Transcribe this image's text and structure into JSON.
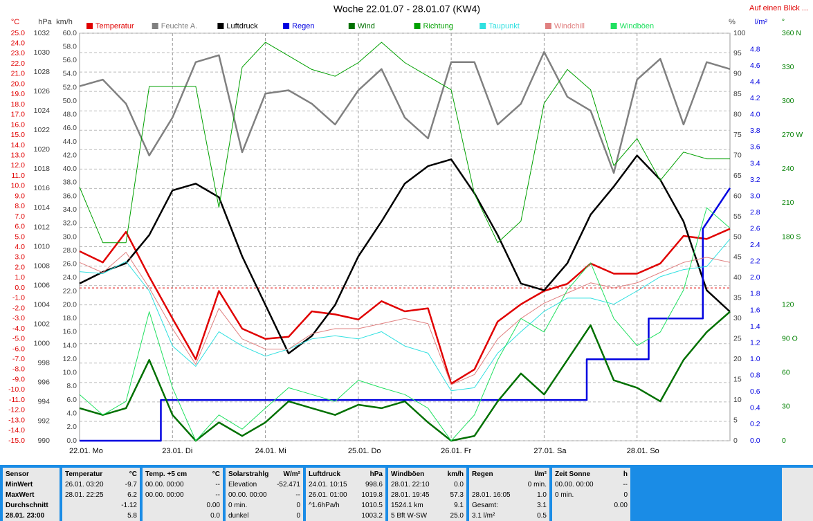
{
  "chart_data": {
    "type": "line",
    "title": "Woche 22.01.07 - 28.01.07 (KW4)",
    "link": "Auf einen Blick ...",
    "xlim": [
      0,
      168
    ],
    "xticks": [
      {
        "value": 0,
        "label": "22.01. Mo"
      },
      {
        "value": 24,
        "label": "23.01. Di"
      },
      {
        "value": 48,
        "label": "24.01. Mi"
      },
      {
        "value": 72,
        "label": "25.01. Do"
      },
      {
        "value": 96,
        "label": "26.01. Fr"
      },
      {
        "value": 120,
        "label": "27.01. Sa"
      },
      {
        "value": 144,
        "label": "28.01. So"
      }
    ],
    "grid": true,
    "axes": {
      "temp": {
        "unit": "°C",
        "color": "#e00000",
        "side": "left",
        "ylim": [
          -15,
          25
        ],
        "yticks": [
          {
            "value": -15,
            "label": "-15.0"
          },
          {
            "value": -14,
            "label": "-14.0"
          },
          {
            "value": -13,
            "label": "-13.0"
          },
          {
            "value": -12,
            "label": "-12.0"
          },
          {
            "value": -11,
            "label": "-11.0"
          },
          {
            "value": -10,
            "label": "-10.0"
          },
          {
            "value": -9,
            "label": "-9.0"
          },
          {
            "value": -8,
            "label": "-8.0"
          },
          {
            "value": -7,
            "label": "-7.0"
          },
          {
            "value": -6,
            "label": "-6.0"
          },
          {
            "value": -5,
            "label": "-5.0"
          },
          {
            "value": -4,
            "label": "-4.0"
          },
          {
            "value": -3,
            "label": "-3.0"
          },
          {
            "value": -2,
            "label": "-2.0"
          },
          {
            "value": -1,
            "label": "-1.0"
          },
          {
            "value": 0,
            "label": "0.0"
          },
          {
            "value": 1,
            "label": "1.0"
          },
          {
            "value": 2,
            "label": "2.0"
          },
          {
            "value": 3,
            "label": "3.0"
          },
          {
            "value": 4,
            "label": "4.0"
          },
          {
            "value": 5,
            "label": "5.0"
          },
          {
            "value": 6,
            "label": "6.0"
          },
          {
            "value": 7,
            "label": "7.0"
          },
          {
            "value": 8,
            "label": "8.0"
          },
          {
            "value": 9,
            "label": "9.0"
          },
          {
            "value": 10,
            "label": "10.0"
          },
          {
            "value": 11,
            "label": "11.0"
          },
          {
            "value": 12,
            "label": "12.0"
          },
          {
            "value": 13,
            "label": "13.0"
          },
          {
            "value": 14,
            "label": "14.0"
          },
          {
            "value": 15,
            "label": "15.0"
          },
          {
            "value": 16,
            "label": "16.0"
          },
          {
            "value": 17,
            "label": "17.0"
          },
          {
            "value": 18,
            "label": "18.0"
          },
          {
            "value": 19,
            "label": "19.0"
          },
          {
            "value": 20,
            "label": "20.0"
          },
          {
            "value": 21,
            "label": "21.0"
          },
          {
            "value": 22,
            "label": "22.0"
          },
          {
            "value": 23,
            "label": "23.0"
          },
          {
            "value": 24,
            "label": "24.0"
          },
          {
            "value": 25,
            "label": "25.0"
          }
        ]
      },
      "hpa": {
        "unit": "hPa",
        "color": "#404040",
        "side": "left",
        "grid": true,
        "ylim": [
          990,
          1032
        ],
        "yticks": [
          990,
          992,
          994,
          996,
          998,
          1000,
          1002,
          1004,
          1006,
          1008,
          1010,
          1012,
          1014,
          1016,
          1018,
          1020,
          1022,
          1024,
          1026,
          1028,
          1030,
          1032
        ]
      },
      "kmh": {
        "unit": "km/h",
        "color": "#404040",
        "side": "left",
        "ylim": [
          0,
          60
        ],
        "yticks": [
          {
            "value": 0,
            "label": "0.0"
          },
          {
            "value": 2,
            "label": "2.0"
          },
          {
            "value": 4,
            "label": "4.0"
          },
          {
            "value": 6,
            "label": "6.0"
          },
          {
            "value": 8,
            "label": "8.0"
          },
          {
            "value": 10,
            "label": "10.0"
          },
          {
            "value": 12,
            "label": "12.0"
          },
          {
            "value": 14,
            "label": "14.0"
          },
          {
            "value": 16,
            "label": "16.0"
          },
          {
            "value": 18,
            "label": "18.0"
          },
          {
            "value": 20,
            "label": "20.0"
          },
          {
            "value": 22,
            "label": "22.0"
          },
          {
            "value": 24,
            "label": "24.0"
          },
          {
            "value": 26,
            "label": "26.0"
          },
          {
            "value": 28,
            "label": "28.0"
          },
          {
            "value": 30,
            "label": "30.0"
          },
          {
            "value": 32,
            "label": "32.0"
          },
          {
            "value": 34,
            "label": "34.0"
          },
          {
            "value": 36,
            "label": "36.0"
          },
          {
            "value": 38,
            "label": "38.0"
          },
          {
            "value": 40,
            "label": "40.0"
          },
          {
            "value": 42,
            "label": "42.0"
          },
          {
            "value": 44,
            "label": "44.0"
          },
          {
            "value": 46,
            "label": "46.0"
          },
          {
            "value": 48,
            "label": "48.0"
          },
          {
            "value": 50,
            "label": "50.0"
          },
          {
            "value": 52,
            "label": "52.0"
          },
          {
            "value": 54,
            "label": "54.0"
          },
          {
            "value": 56,
            "label": "56.0"
          },
          {
            "value": 58,
            "label": "58.0"
          },
          {
            "value": 60,
            "label": "60.0"
          }
        ]
      },
      "pct": {
        "unit": "%",
        "color": "#404040",
        "side": "right",
        "ylim": [
          0,
          100
        ],
        "yticks": [
          0,
          5,
          10,
          15,
          20,
          25,
          30,
          35,
          40,
          45,
          50,
          55,
          60,
          65,
          70,
          75,
          80,
          85,
          90,
          95,
          100
        ]
      },
      "rain": {
        "unit": "l/m²",
        "color": "#0000e0",
        "side": "right",
        "ylim": [
          0,
          5
        ],
        "yticks": [
          {
            "value": 0,
            "label": "0.0"
          },
          {
            "value": 0.2,
            "label": "0.2"
          },
          {
            "value": 0.4,
            "label": "0.4"
          },
          {
            "value": 0.6,
            "label": "0.6"
          },
          {
            "value": 0.8,
            "label": "0.8"
          },
          {
            "value": 1,
            "label": "1.0"
          },
          {
            "value": 1.2,
            "label": "1.2"
          },
          {
            "value": 1.4,
            "label": "1.4"
          },
          {
            "value": 1.6,
            "label": "1.6"
          },
          {
            "value": 1.8,
            "label": "1.8"
          },
          {
            "value": 2,
            "label": "2.0"
          },
          {
            "value": 2.2,
            "label": "2.2"
          },
          {
            "value": 2.4,
            "label": "2.4"
          },
          {
            "value": 2.6,
            "label": "2.6"
          },
          {
            "value": 2.8,
            "label": "2.8"
          },
          {
            "value": 3,
            "label": "3.0"
          },
          {
            "value": 3.2,
            "label": "3.2"
          },
          {
            "value": 3.4,
            "label": "3.4"
          },
          {
            "value": 3.6,
            "label": "3.6"
          },
          {
            "value": 3.8,
            "label": "3.8"
          },
          {
            "value": 4,
            "label": "4.0"
          },
          {
            "value": 4.2,
            "label": "4.2"
          },
          {
            "value": 4.4,
            "label": "4.4"
          },
          {
            "value": 4.6,
            "label": "4.6"
          },
          {
            "value": 4.8,
            "label": "4.8"
          }
        ]
      },
      "dir": {
        "unit": "°",
        "color": "#008000",
        "side": "right",
        "ylim": [
          0,
          360
        ],
        "yticks": [
          0,
          30,
          60,
          {
            "value": 90,
            "label": "90 O"
          },
          120,
          {
            "value": 180,
            "label": "180 S"
          },
          210,
          240,
          {
            "value": 270,
            "label": "270 W"
          },
          300,
          330,
          {
            "value": 360,
            "label": "360 N"
          }
        ]
      }
    },
    "x": [
      0,
      6,
      12,
      18,
      24,
      30,
      36,
      42,
      48,
      54,
      60,
      66,
      72,
      78,
      84,
      90,
      96,
      102,
      108,
      114,
      120,
      126,
      132,
      138,
      144,
      150,
      156,
      162,
      168
    ],
    "series": [
      {
        "name": "Temperatur",
        "color": "#e00000",
        "axis": "temp",
        "width": 2.5,
        "values": [
          3.6,
          2.5,
          5.5,
          1.1,
          -3,
          -7,
          -0.3,
          -4,
          -5,
          -4.8,
          -2.3,
          -2.6,
          -3.1,
          -1.3,
          -2.3,
          -2,
          -9.4,
          -8,
          -3.3,
          -1.6,
          -0.3,
          0.4,
          2.4,
          1.4,
          1.4,
          2.4,
          5.1,
          4.8,
          5.8
        ]
      },
      {
        "name": "Feuchte A.",
        "color": "#808080",
        "axis": "pct",
        "width": 2.5,
        "values": [
          87,
          88.6,
          82.7,
          70,
          79.3,
          92.9,
          94.6,
          70.8,
          85.2,
          86,
          82.7,
          77.6,
          86,
          91.2,
          79.3,
          74.2,
          92.9,
          92.9,
          77.6,
          82.7,
          95.4,
          84.4,
          81,
          65.7,
          88.6,
          93.7,
          77.6,
          92.9,
          91.2
        ]
      },
      {
        "name": "Luftdruck",
        "color": "#000000",
        "axis": "hpa",
        "width": 2.5,
        "values": [
          1006.2,
          1007.4,
          1008.3,
          1011.2,
          1015.8,
          1016.5,
          1015.1,
          1009,
          1004,
          999,
          1000.8,
          1004,
          1009,
          1012.6,
          1016.5,
          1018.3,
          1019,
          1015.5,
          1011.2,
          1006.2,
          1005.5,
          1008.3,
          1013.3,
          1016.2,
          1019.4,
          1016.9,
          1012.6,
          1005.5,
          1003.3
        ]
      },
      {
        "name": "Regen",
        "color": "#0000e0",
        "axis": "rain",
        "width": 2.5,
        "x": [
          0,
          21,
          21,
          131,
          131,
          147,
          147,
          161,
          161,
          168
        ],
        "values": [
          0,
          0,
          0.5,
          0.5,
          1,
          1,
          1.5,
          1.5,
          2.6,
          3.1
        ]
      },
      {
        "name": "Wind",
        "color": "#007000",
        "axis": "kmh",
        "width": 2.5,
        "values": [
          4.8,
          3.8,
          4.8,
          11.9,
          3.8,
          0,
          2.7,
          0.7,
          2.7,
          5.8,
          4.8,
          3.8,
          5.3,
          4.8,
          5.8,
          2.7,
          0,
          0.7,
          5.8,
          9.9,
          6.8,
          11.9,
          17,
          8.9,
          7.8,
          5.8,
          11.9,
          16,
          19
        ]
      },
      {
        "name": "Richtung",
        "color": "#00a000",
        "axis": "dir",
        "width": 1,
        "values": [
          224,
          175,
          175,
          313,
          313,
          313,
          206,
          330,
          352,
          340,
          328,
          322,
          334,
          352,
          334,
          322,
          310,
          218,
          175,
          194,
          298,
          328,
          310,
          243,
          267,
          230,
          255,
          249,
          249
        ]
      },
      {
        "name": "Taupunkt",
        "color": "#30e0e0",
        "axis": "temp",
        "width": 1,
        "values": [
          1.6,
          1.4,
          2.6,
          -0.3,
          -5.7,
          -7.7,
          -4.3,
          -5.7,
          -6.7,
          -6,
          -5,
          -4.7,
          -5,
          -4.3,
          -5.7,
          -6.4,
          -10.1,
          -9.8,
          -6.4,
          -4.3,
          -2.3,
          -1,
          -1,
          -1.6,
          -0.3,
          1.1,
          1.8,
          2.1,
          4.8
        ]
      },
      {
        "name": "Windchill",
        "color": "#e08080",
        "axis": "temp",
        "width": 1,
        "values": [
          2.5,
          1.5,
          3.5,
          0,
          -4,
          -7.5,
          -2,
          -5,
          -6,
          -6,
          -4.5,
          -4,
          -4,
          -3.5,
          -3,
          -3.5,
          -9.5,
          -8.5,
          -5,
          -3,
          -1.5,
          -0.5,
          0.5,
          0,
          0.5,
          1.5,
          2.5,
          3,
          2.5
        ]
      },
      {
        "name": "Windböen",
        "color": "#20e060",
        "axis": "kmh",
        "width": 1,
        "values": [
          6.8,
          3.8,
          5.8,
          19,
          7.8,
          0,
          3.8,
          1.7,
          4.8,
          7.8,
          6.8,
          5.8,
          8.9,
          7.8,
          6.8,
          4.8,
          0,
          3.8,
          11.9,
          18,
          16,
          22.2,
          26.2,
          18,
          14,
          16,
          22.2,
          34.3,
          31.3
        ]
      }
    ]
  },
  "stats": {
    "columns": [
      {
        "header": [
          "Sensor"
        ],
        "rows": [
          [
            "MinWert"
          ],
          [
            "MaxWert"
          ],
          [
            "Durchschnitt"
          ],
          [
            "28.01. 23:00"
          ]
        ]
      },
      {
        "header": [
          "Temperatur",
          "°C"
        ],
        "rows": [
          [
            "26.01. 03:20",
            "-9.7"
          ],
          [
            "28.01. 22:25",
            "6.2"
          ],
          [
            "-1.12"
          ],
          [
            "5.8"
          ]
        ]
      },
      {
        "header": [
          "Temp. +5 cm",
          "°C"
        ],
        "rows": [
          [
            "00.00. 00:00",
            "--"
          ],
          [
            "00.00. 00:00",
            "--"
          ],
          [
            "0.00"
          ],
          [
            "0.0"
          ]
        ]
      },
      {
        "header": [
          "Solarstrahlg",
          "W/m²"
        ],
        "rows": [
          [
            "Elevation",
            "-52.471"
          ],
          [
            "00.00. 00:00",
            "--"
          ],
          [
            "0 min.",
            "0"
          ],
          [
            "dunkel",
            "0"
          ]
        ]
      },
      {
        "header": [
          "Luftdruck",
          "hPa"
        ],
        "rows": [
          [
            "24.01. 10:15",
            "998.6"
          ],
          [
            "26.01. 01:00",
            "1019.8"
          ],
          [
            "^1.6hPa/h",
            "1010.5"
          ],
          [
            "1003.2"
          ]
        ]
      },
      {
        "header": [
          "Windböen",
          "km/h"
        ],
        "rows": [
          [
            "28.01. 22:10",
            "0.0"
          ],
          [
            "28.01. 19:45",
            "57.3"
          ],
          [
            "1524.1 km",
            "9.1"
          ],
          [
            "5 Bft W-SW",
            "25.0"
          ]
        ]
      },
      {
        "header": [
          "Regen",
          "l/m²"
        ],
        "rows": [
          [
            "0 min."
          ],
          [
            "28.01. 16:05",
            "1.0"
          ],
          [
            "Gesamt:",
            "3.1"
          ],
          [
            "3.1 l/m²",
            "0.5"
          ]
        ]
      },
      {
        "header": [
          "Zeit Sonne",
          "h"
        ],
        "rows": [
          [
            "00.00. 00:00",
            "--"
          ],
          [
            "0 min.",
            "0"
          ],
          [
            "0.00"
          ]
        ]
      }
    ]
  }
}
